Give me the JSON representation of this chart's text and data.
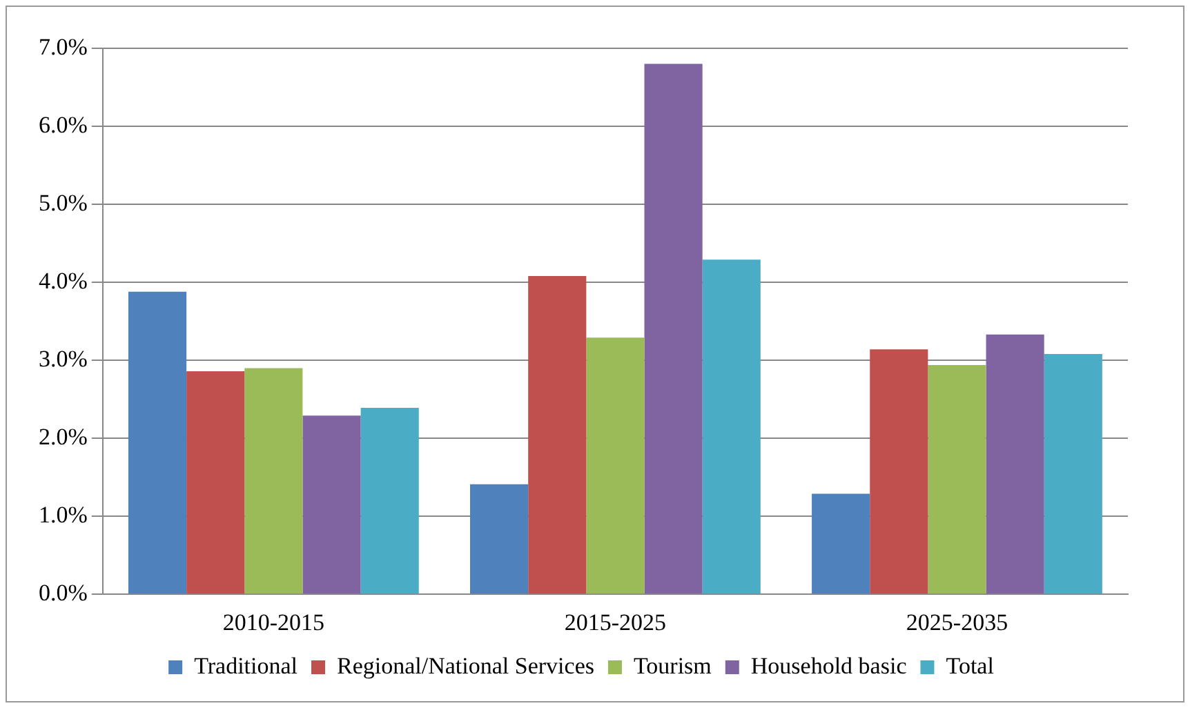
{
  "chart_data": {
    "type": "bar",
    "categories": [
      "2010-2015",
      "2015-2025",
      "2025-2035"
    ],
    "series": [
      {
        "name": "Traditional",
        "color": "#4f81bd",
        "values": [
          3.88,
          1.41,
          1.29
        ]
      },
      {
        "name": "Regional/National Services",
        "color": "#c0504d",
        "values": [
          2.86,
          4.08,
          3.14
        ]
      },
      {
        "name": "Tourism",
        "color": "#9bbb59",
        "values": [
          2.9,
          3.29,
          2.94
        ]
      },
      {
        "name": "Household basic",
        "color": "#8064a2",
        "values": [
          2.29,
          6.8,
          3.33
        ]
      },
      {
        "name": "Total",
        "color": "#4bacc6",
        "values": [
          2.39,
          4.29,
          3.08
        ]
      }
    ],
    "ylim": [
      0,
      7
    ],
    "yticks": [
      {
        "value": 0,
        "label": "0.0%"
      },
      {
        "value": 1,
        "label": "1.0%"
      },
      {
        "value": 2,
        "label": "2.0%"
      },
      {
        "value": 3,
        "label": "3.0%"
      },
      {
        "value": 4,
        "label": "4.0%"
      },
      {
        "value": 5,
        "label": "5.0%"
      },
      {
        "value": 6,
        "label": "6.0%"
      },
      {
        "value": 7,
        "label": "7.0%"
      }
    ],
    "grid": "y",
    "legend": "bottom"
  }
}
